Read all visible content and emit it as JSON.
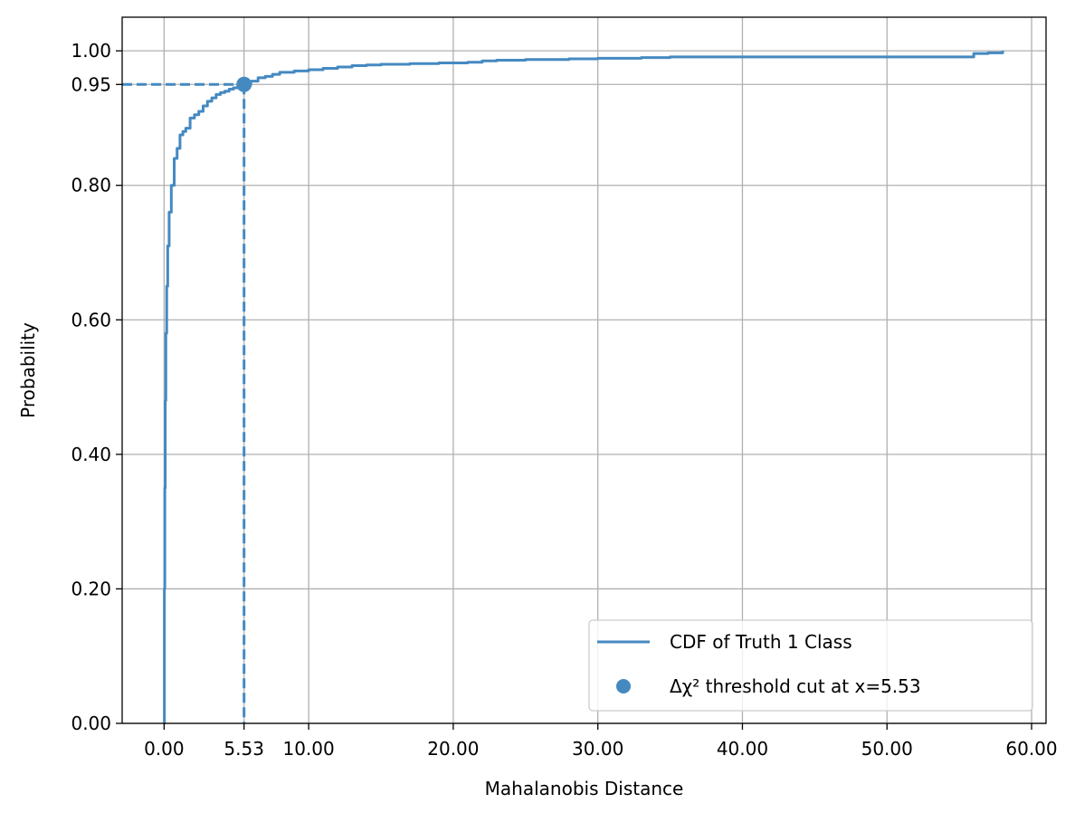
{
  "chart_data": {
    "type": "line",
    "title": "",
    "xlabel": "Mahalanobis Distance",
    "ylabel": "Probability",
    "xlim": [
      -2.9,
      61.0
    ],
    "ylim": [
      0,
      1.05
    ],
    "xticks": [
      0,
      5.53,
      10,
      20,
      30,
      40,
      50,
      60
    ],
    "xtick_labels": [
      "0.00",
      "5.53",
      "10.00",
      "20.00",
      "30.00",
      "40.00",
      "50.00",
      "60.00"
    ],
    "yticks": [
      0,
      0.2,
      0.4,
      0.6,
      0.8,
      0.95,
      1.0
    ],
    "ytick_labels": [
      "0.00",
      "0.20",
      "0.40",
      "0.60",
      "0.80",
      "0.95",
      "1.00"
    ],
    "grid": true,
    "legend_position": "lower-right",
    "series": [
      {
        "name": "CDF of Truth 1 Class",
        "color": "#4589c1",
        "x": [
          0.0,
          0.02,
          0.05,
          0.08,
          0.12,
          0.18,
          0.25,
          0.35,
          0.5,
          0.7,
          0.9,
          1.1,
          1.3,
          1.5,
          1.8,
          2.1,
          2.4,
          2.7,
          3.0,
          3.3,
          3.6,
          3.9,
          4.2,
          4.5,
          4.8,
          5.1,
          5.53,
          6.0,
          6.5,
          7.0,
          7.5,
          8.0,
          9.0,
          10.0,
          11.0,
          12.0,
          13.0,
          14.0,
          15.0,
          17.0,
          19.0,
          21.0,
          22.0,
          23.0,
          25.0,
          28.0,
          30.0,
          33.0,
          35.0,
          40.0,
          45.0,
          50.0,
          55.0,
          56.0,
          57.0,
          58.0
        ],
        "y": [
          0.0,
          0.2,
          0.35,
          0.48,
          0.58,
          0.65,
          0.71,
          0.76,
          0.8,
          0.84,
          0.855,
          0.875,
          0.88,
          0.885,
          0.9,
          0.905,
          0.91,
          0.918,
          0.925,
          0.93,
          0.935,
          0.938,
          0.94,
          0.943,
          0.945,
          0.947,
          0.95,
          0.955,
          0.96,
          0.962,
          0.965,
          0.968,
          0.97,
          0.972,
          0.974,
          0.976,
          0.978,
          0.979,
          0.98,
          0.981,
          0.982,
          0.983,
          0.985,
          0.986,
          0.987,
          0.988,
          0.989,
          0.99,
          0.991,
          0.991,
          0.991,
          0.991,
          0.991,
          0.996,
          0.997,
          1.0
        ]
      }
    ],
    "threshold": {
      "label": "Δχ² threshold cut at x=5.53",
      "x": 5.53,
      "y": 0.95,
      "color": "#4589c1"
    }
  }
}
